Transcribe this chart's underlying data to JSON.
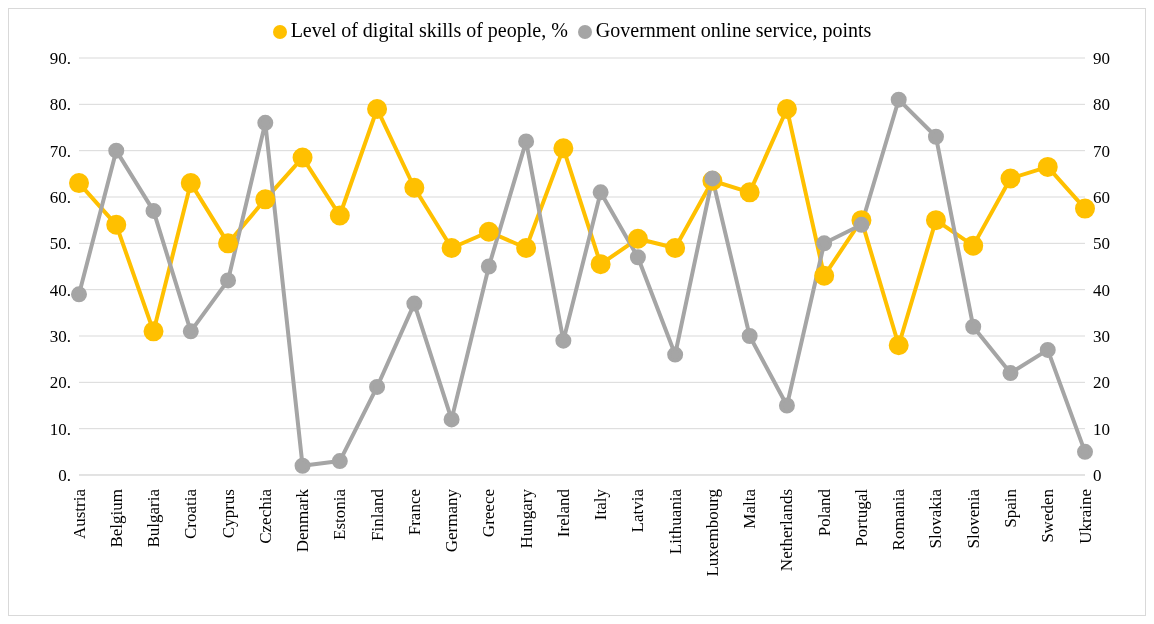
{
  "chart_data": {
    "type": "line",
    "categories": [
      "Austria",
      "Belgium",
      "Bulgaria",
      "Croatia",
      "Cyprus",
      "Czechia",
      "Denmark",
      "Estonia",
      "Finland",
      "France",
      "Germany",
      "Greece",
      "Hungary",
      "Ireland",
      "Italy",
      "Latvia",
      "Lithuania",
      "Luxembourg",
      "Malta",
      "Netherlands",
      "Poland",
      "Portugal",
      "Romania",
      "Slovakia",
      "Slovenia",
      "Spain",
      "Sweden",
      "Ukraine"
    ],
    "series": [
      {
        "name": "Level of digital skills of people, %",
        "color": "#ffc000",
        "values": [
          63,
          54,
          31,
          63,
          50,
          59.5,
          68.5,
          56,
          79,
          62,
          49,
          52.5,
          49,
          70.5,
          45.5,
          51,
          49,
          63.5,
          61,
          79,
          43,
          55,
          28,
          55,
          49.5,
          64,
          66.5,
          57.5
        ]
      },
      {
        "name": "Government online service, points",
        "color": "#a5a5a5",
        "axis": "y2",
        "values": [
          39,
          70,
          57,
          31,
          42,
          76,
          2,
          3,
          19,
          37,
          12,
          45,
          72,
          29,
          61,
          47,
          26,
          64,
          30,
          15,
          50,
          54,
          81,
          73,
          32,
          22,
          27,
          5
        ]
      }
    ],
    "ylim": [
      0,
      90
    ],
    "yticks": [
      {
        "value": 0,
        "label": "0."
      },
      {
        "value": 10,
        "label": "10."
      },
      {
        "value": 20,
        "label": "20."
      },
      {
        "value": 30,
        "label": "30."
      },
      {
        "value": 40,
        "label": "40."
      },
      {
        "value": 50,
        "label": "50."
      },
      {
        "value": 60,
        "label": "60."
      },
      {
        "value": 70,
        "label": "70."
      },
      {
        "value": 80,
        "label": "80."
      },
      {
        "value": 90,
        "label": "90."
      }
    ],
    "y2lim": [
      0,
      90
    ],
    "y2ticks": [
      0,
      10,
      20,
      30,
      40,
      50,
      60,
      70,
      80,
      90
    ],
    "grid": "y",
    "legend": "top",
    "marker": "circle",
    "line_style": "solid"
  }
}
